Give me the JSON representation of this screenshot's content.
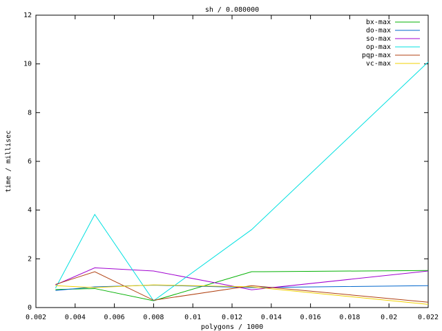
{
  "chart_data": {
    "type": "line",
    "title": "sh / 0.080000",
    "x_label": "polygons / 1000",
    "y_label": "time / millisec",
    "x": [
      0.003,
      0.005,
      0.008,
      0.013,
      0.022
    ],
    "series": [
      {
        "name": "bx-max",
        "color": "#00b000",
        "values": [
          0.74,
          0.78,
          0.28,
          1.47,
          1.52
        ]
      },
      {
        "name": "do-max",
        "color": "#0066cc",
        "values": [
          0.7,
          0.85,
          0.92,
          0.82,
          0.9
        ]
      },
      {
        "name": "so-max",
        "color": "#a000d0",
        "values": [
          0.93,
          1.63,
          1.5,
          0.73,
          1.5
        ]
      },
      {
        "name": "op-max",
        "color": "#00e0e0",
        "values": [
          0.8,
          3.82,
          0.28,
          3.2,
          10.08
        ]
      },
      {
        "name": "pqp-max",
        "color": "#b04010",
        "values": [
          0.95,
          1.47,
          0.3,
          0.9,
          0.22
        ]
      },
      {
        "name": "vc-max",
        "color": "#f0d000",
        "values": [
          0.9,
          0.82,
          0.93,
          0.85,
          0.13
        ]
      }
    ],
    "xlim": [
      0.002,
      0.022
    ],
    "xticks": [
      0.002,
      0.004,
      0.006,
      0.008,
      0.01,
      0.012,
      0.014,
      0.016,
      0.018,
      0.02,
      0.022
    ],
    "ylim": [
      0,
      12
    ],
    "yticks": [
      0,
      2,
      4,
      6,
      8,
      10,
      12
    ],
    "legend": "top-right",
    "grid": false
  }
}
